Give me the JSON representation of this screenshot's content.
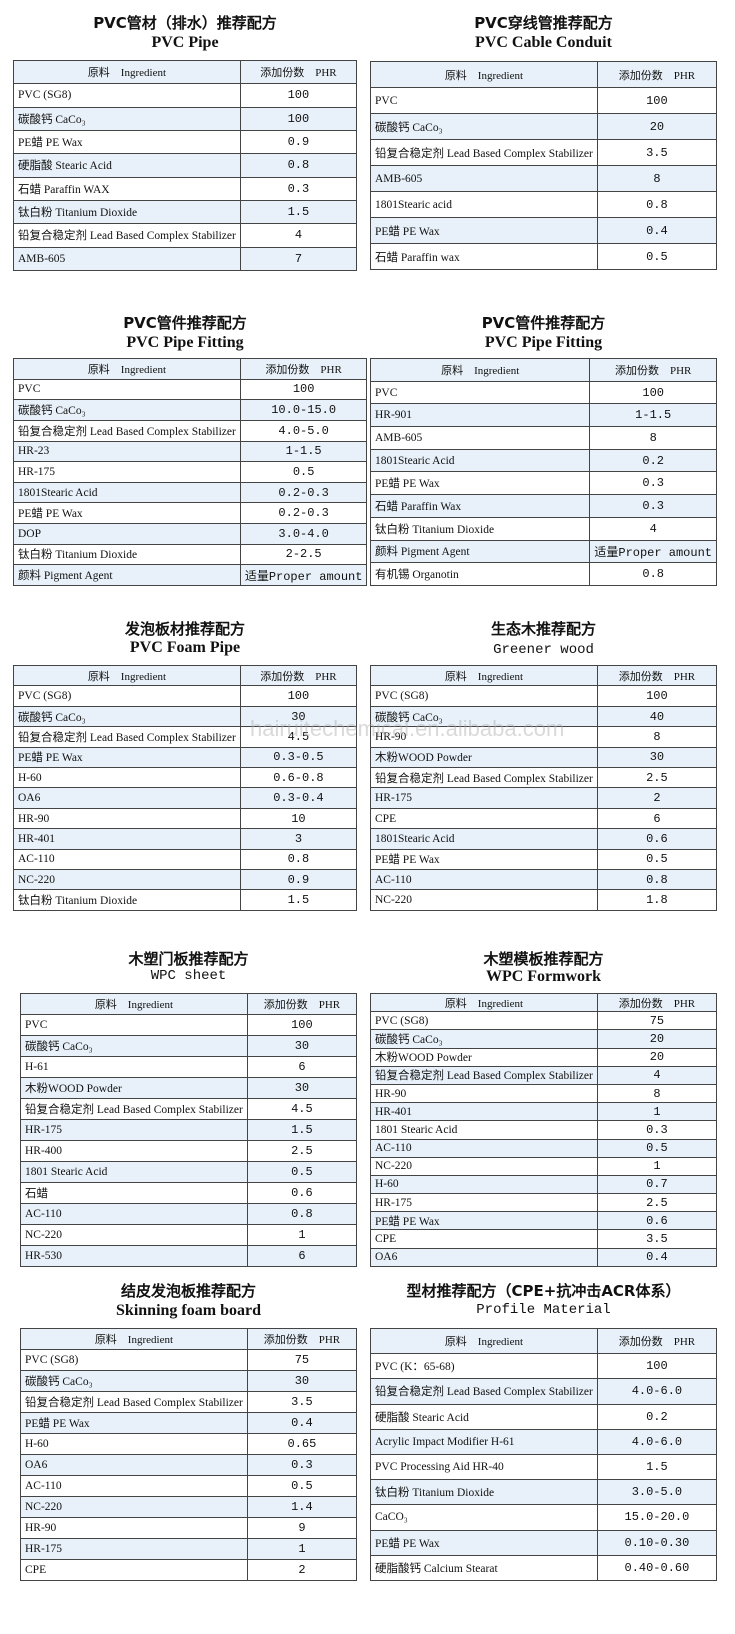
{
  "header_labels": {
    "ingredient": "原料　Ingredient",
    "phr": "添加份数　PHR"
  },
  "watermark": "hairuitechemical.en.alibaba.com",
  "sections": [
    {
      "title_zh": "PVC管材（排水）推荐配方",
      "title_en": "PVC Pipe",
      "rows": [
        [
          "PVC (SG8)",
          "100"
        ],
        [
          "碳酸钙 CaCo₃",
          "100"
        ],
        [
          "PE蜡 PE Wax",
          "0.9"
        ],
        [
          "硬脂酸 Stearic Acid",
          "0.8"
        ],
        [
          "石蜡 Paraffin WAX",
          "0.3"
        ],
        [
          "钛白粉 Titanium Dioxide",
          "1.5"
        ],
        [
          "铅复合稳定剂 Lead Based Complex Stabilizer",
          "4"
        ],
        [
          "AMB-605",
          "7"
        ]
      ]
    },
    {
      "title_zh": "PVC穿线管推荐配方",
      "title_en": "PVC Cable Conduit",
      "rows": [
        [
          "PVC",
          "100"
        ],
        [
          "碳酸钙 CaCo₃",
          "20"
        ],
        [
          "铅复合稳定剂 Lead Based Complex Stabilizer",
          "3.5"
        ],
        [
          "AMB-605",
          "8"
        ],
        [
          "1801Stearic acid",
          "0.8"
        ],
        [
          "PE蜡 PE Wax",
          "0.4"
        ],
        [
          "石蜡 Paraffin wax",
          "0.5"
        ]
      ]
    },
    {
      "title_zh": "PVC管件推荐配方",
      "title_en": "PVC Pipe Fitting",
      "rows": [
        [
          "PVC",
          "100"
        ],
        [
          "碳酸钙 CaCo₃",
          "10.0-15.0"
        ],
        [
          "铅复合稳定剂 Lead Based Complex Stabilizer",
          "4.0-5.0"
        ],
        [
          "HR-23",
          "1-1.5"
        ],
        [
          "HR-175",
          "0.5"
        ],
        [
          "1801Stearic Acid",
          "0.2-0.3"
        ],
        [
          "PE蜡 PE Wax",
          "0.2-0.3"
        ],
        [
          "DOP",
          "3.0-4.0"
        ],
        [
          "钛白粉 Titanium Dioxide",
          "2-2.5"
        ],
        [
          "颜料 Pigment Agent",
          "适量Proper amount"
        ]
      ]
    },
    {
      "title_zh": "PVC管件推荐配方",
      "title_en": "PVC Pipe Fitting",
      "rows": [
        [
          "PVC",
          "100"
        ],
        [
          "HR-901",
          "1-1.5"
        ],
        [
          "AMB-605",
          "8"
        ],
        [
          "1801Stearic Acid",
          "0.2"
        ],
        [
          "PE蜡 PE Wax",
          "0.3"
        ],
        [
          "石蜡 Paraffin Wax",
          "0.3"
        ],
        [
          "钛白粉 Titanium Dioxide",
          "4"
        ],
        [
          "颜料 Pigment Agent",
          "适量Proper amount"
        ],
        [
          "有机锡 Organotin",
          "0.8"
        ]
      ]
    },
    {
      "title_zh": "发泡板材推荐配方",
      "title_en": "PVC Foam Pipe",
      "rows": [
        [
          "PVC (SG8)",
          "100"
        ],
        [
          "碳酸钙 CaCo₃",
          "30"
        ],
        [
          "铅复合稳定剂 Lead Based Complex Stabilizer",
          "4.5"
        ],
        [
          "PE蜡 PE Wax",
          "0.3-0.5"
        ],
        [
          "H-60",
          "0.6-0.8"
        ],
        [
          "OA6",
          "0.3-0.4"
        ],
        [
          "HR-90",
          "10"
        ],
        [
          "HR-401",
          "3"
        ],
        [
          "AC-110",
          "0.8"
        ],
        [
          "NC-220",
          "0.9"
        ],
        [
          "钛白粉 Titanium Dioxide",
          "1.5"
        ]
      ]
    },
    {
      "title_zh": "生态木推荐配方",
      "title_en": "Greener wood",
      "rows": [
        [
          "PVC (SG8)",
          "100"
        ],
        [
          "碳酸钙 CaCo₃",
          "40"
        ],
        [
          "HR-90",
          "8"
        ],
        [
          "木粉WOOD Powder",
          "30"
        ],
        [
          "铅复合稳定剂 Lead Based Complex Stabilizer",
          "2.5"
        ],
        [
          "HR-175",
          "2"
        ],
        [
          "CPE",
          "6"
        ],
        [
          "1801Stearic Acid",
          "0.6"
        ],
        [
          "PE蜡 PE Wax",
          "0.5"
        ],
        [
          "AC-110",
          "0.8"
        ],
        [
          "NC-220",
          "1.8"
        ]
      ]
    },
    {
      "title_zh": "木塑门板推荐配方",
      "title_en": "WPC sheet",
      "rows": [
        [
          "PVC",
          "100"
        ],
        [
          "碳酸钙 CaCo₃",
          "30"
        ],
        [
          "H-61",
          "6"
        ],
        [
          "木粉WOOD Powder",
          "30"
        ],
        [
          "铅复合稳定剂 Lead Based Complex Stabilizer",
          "4.5"
        ],
        [
          "HR-175",
          "1.5"
        ],
        [
          "HR-400",
          "2.5"
        ],
        [
          "1801 Stearic Acid",
          "0.5"
        ],
        [
          "石蜡",
          "0.6"
        ],
        [
          "AC-110",
          "0.8"
        ],
        [
          "NC-220",
          "1"
        ],
        [
          "HR-530",
          "6"
        ]
      ]
    },
    {
      "title_zh": "木塑模板推荐配方",
      "title_en": "WPC Formwork",
      "rows": [
        [
          "PVC (SG8)",
          "75"
        ],
        [
          "碳酸钙 CaCo₃",
          "20"
        ],
        [
          "木粉WOOD Powder",
          "20"
        ],
        [
          "铅复合稳定剂 Lead Based Complex Stabilizer",
          "4"
        ],
        [
          "HR-90",
          "8"
        ],
        [
          "HR-401",
          "1"
        ],
        [
          "1801 Stearic Acid",
          "0.3"
        ],
        [
          "AC-110",
          "0.5"
        ],
        [
          "NC-220",
          "1"
        ],
        [
          "H-60",
          "0.7"
        ],
        [
          "HR-175",
          "2.5"
        ],
        [
          "PE蜡 PE Wax",
          "0.6"
        ],
        [
          "CPE",
          "3.5"
        ],
        [
          "OA6",
          "0.4"
        ]
      ]
    },
    {
      "title_zh": "结皮发泡板推荐配方",
      "title_en": "Skinning foam board",
      "rows": [
        [
          "PVC (SG8)",
          "75"
        ],
        [
          "碳酸钙 CaCo₃",
          "30"
        ],
        [
          "铅复合稳定剂 Lead Based Complex Stabilizer",
          "3.5"
        ],
        [
          "PE蜡 PE Wax",
          "0.4"
        ],
        [
          "H-60",
          "0.65"
        ],
        [
          "OA6",
          "0.3"
        ],
        [
          "AC-110",
          "0.5"
        ],
        [
          "NC-220",
          "1.4"
        ],
        [
          "HR-90",
          "9"
        ],
        [
          "HR-175",
          "1"
        ],
        [
          "CPE",
          "2"
        ]
      ]
    },
    {
      "title_zh": "型材推荐配方（CPE+抗冲击ACR体系）",
      "title_en": "Profile Material",
      "rows": [
        [
          "PVC (K：65-68)",
          "100"
        ],
        [
          "铅复合稳定剂 Lead Based Complex Stabilizer",
          "4.0-6.0"
        ],
        [
          "硬脂酸 Stearic Acid",
          "0.2"
        ],
        [
          "Acrylic Impact Modifier H-61",
          "4.0-6.0"
        ],
        [
          "PVC Processing Aid HR-40",
          "1.5"
        ],
        [
          "钛白粉 Titanium Dioxide",
          "3.0-5.0"
        ],
        [
          "CaCO₃",
          "15.0-20.0"
        ],
        [
          "PE蜡 PE Wax",
          "0.10-0.30"
        ],
        [
          "硬脂酸钙 Calcium Stearat",
          "0.40-0.60"
        ]
      ]
    }
  ]
}
